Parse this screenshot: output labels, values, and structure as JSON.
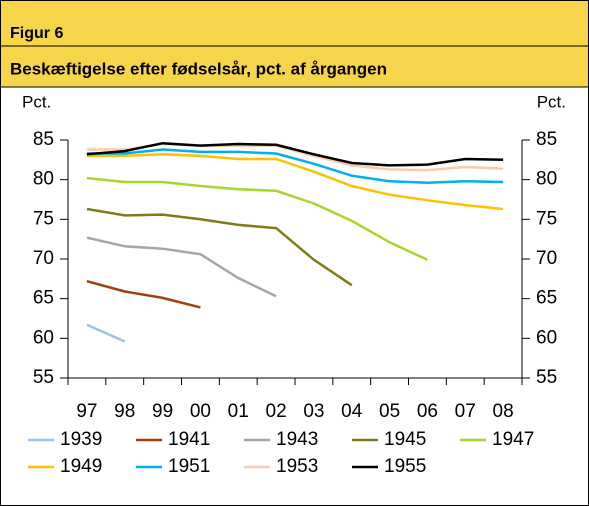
{
  "chart_data": {
    "type": "line",
    "figure_label": "Figur 6",
    "title": "Beskæftigelse efter fødselsår, pct. af årgangen",
    "ylabel": "Pct.",
    "y2label": "Pct.",
    "categories": [
      "97",
      "98",
      "99",
      "00",
      "01",
      "02",
      "03",
      "04",
      "05",
      "06",
      "07",
      "08"
    ],
    "ylim": [
      55,
      85
    ],
    "yticks": [
      55,
      60,
      65,
      70,
      75,
      80,
      85
    ],
    "y2lim": [
      55,
      85
    ],
    "y2ticks": [
      55,
      60,
      65,
      70,
      75,
      80,
      85
    ],
    "legend": "bottom",
    "series": [
      {
        "name": "1939",
        "color": "#9dc3e6",
        "values": [
          61.7,
          59.6,
          null,
          null,
          null,
          null,
          null,
          null,
          null,
          null,
          null,
          null
        ]
      },
      {
        "name": "1941",
        "color": "#a0410d",
        "values": [
          67.2,
          65.9,
          65.1,
          63.9,
          null,
          null,
          null,
          null,
          null,
          null,
          null,
          null
        ]
      },
      {
        "name": "1943",
        "color": "#a6a6a6",
        "values": [
          72.7,
          71.6,
          71.3,
          70.6,
          67.6,
          65.3,
          null,
          null,
          null,
          null,
          null,
          null
        ]
      },
      {
        "name": "1945",
        "color": "#7f7a1a",
        "values": [
          76.3,
          75.5,
          75.6,
          75.0,
          74.3,
          73.9,
          69.9,
          66.7,
          null,
          null,
          null,
          null
        ]
      },
      {
        "name": "1947",
        "color": "#a8d52a",
        "values": [
          80.2,
          79.7,
          79.7,
          79.2,
          78.8,
          78.6,
          77.0,
          74.8,
          72.1,
          69.9,
          null,
          null
        ]
      },
      {
        "name": "1949",
        "color": "#ffc000",
        "values": [
          83.0,
          83.0,
          83.2,
          83.0,
          82.6,
          82.6,
          81.0,
          79.2,
          78.1,
          77.4,
          76.8,
          76.3
        ]
      },
      {
        "name": "1951",
        "color": "#00b0f0",
        "values": [
          83.3,
          83.3,
          83.8,
          83.5,
          83.5,
          83.3,
          82.0,
          80.5,
          79.8,
          79.6,
          79.8,
          79.7
        ]
      },
      {
        "name": "1953",
        "color": "#f8cbad",
        "values": [
          83.8,
          83.8,
          84.5,
          84.3,
          84.3,
          84.3,
          83.0,
          81.8,
          81.3,
          81.2,
          81.6,
          81.4
        ]
      },
      {
        "name": "1955",
        "color": "#000000",
        "values": [
          83.2,
          83.6,
          84.6,
          84.3,
          84.5,
          84.4,
          83.2,
          82.1,
          81.8,
          81.9,
          82.6,
          82.5
        ]
      }
    ]
  }
}
